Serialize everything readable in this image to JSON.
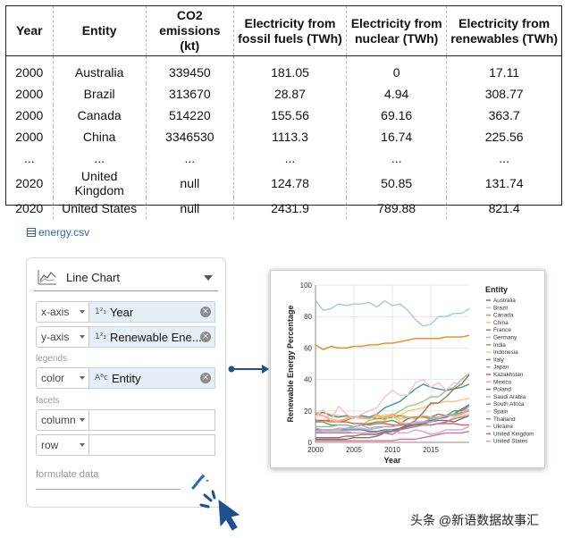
{
  "table": {
    "headers": [
      "Year",
      "Entity",
      "CO2 emissions (kt)",
      "Electricity from fossil fuels (TWh)",
      "Electricity from nuclear (TWh)",
      "Electricity from renewables (TWh)"
    ],
    "rows": [
      [
        "2000",
        "Australia",
        "339450",
        "181.05",
        "0",
        "17.11"
      ],
      [
        "2000",
        "Brazil",
        "313670",
        "28.87",
        "4.94",
        "308.77"
      ],
      [
        "2000",
        "Canada",
        "514220",
        "155.56",
        "69.16",
        "363.7"
      ],
      [
        "2000",
        "China",
        "3346530",
        "1113.3",
        "16.74",
        "225.56"
      ],
      [
        "...",
        "...",
        "...",
        "...",
        "...",
        "..."
      ],
      [
        "2020",
        "United Kingdom",
        "null",
        "124.78",
        "50.85",
        "131.74"
      ],
      [
        "2020",
        "United States",
        "null",
        "2431.9",
        "789.88",
        "821.4"
      ]
    ]
  },
  "file": {
    "name": "energy.csv"
  },
  "panel": {
    "chart_type": "Line Chart",
    "encodings": [
      {
        "channel": "x-axis",
        "field": "Year",
        "type_glyph": "1²₃"
      },
      {
        "channel": "y-axis",
        "field": "Renewable Ene...",
        "type_glyph": "1²₃"
      }
    ],
    "legends_label": "legends",
    "legend_encoding": {
      "channel": "color",
      "field": "Entity",
      "type_glyph": "Aᴮc"
    },
    "facets_label": "facets",
    "facet_encodings": [
      {
        "channel": "column",
        "field": ""
      },
      {
        "channel": "row",
        "field": ""
      }
    ],
    "formulate_placeholder": "formulate data"
  },
  "chart_data": {
    "type": "line",
    "xlabel": "Year",
    "ylabel": "Renewable Energy Percentage",
    "xlim": [
      2000,
      2020
    ],
    "ylim": [
      0,
      100
    ],
    "xticks": [
      2000,
      2005,
      2010,
      2015
    ],
    "yticks": [
      0,
      20,
      40,
      60,
      80,
      100
    ],
    "legend_title": "Entity",
    "legend_position": "right",
    "x": [
      2000,
      2001,
      2002,
      2003,
      2004,
      2005,
      2006,
      2007,
      2008,
      2009,
      2010,
      2011,
      2012,
      2013,
      2014,
      2015,
      2016,
      2017,
      2018,
      2019,
      2020
    ],
    "series": [
      {
        "name": "Australia",
        "color": "#4c78a8",
        "values": [
          8,
          8,
          8,
          8,
          8,
          8,
          8,
          7,
          7,
          8,
          8,
          9,
          10,
          12,
          13,
          14,
          15,
          16,
          18,
          21,
          24
        ]
      },
      {
        "name": "Brazil",
        "color": "#9ecae9",
        "values": [
          90,
          84,
          85,
          88,
          87,
          88,
          88,
          89,
          86,
          90,
          87,
          88,
          84,
          78,
          74,
          75,
          80,
          80,
          82,
          82,
          85
        ]
      },
      {
        "name": "Canada",
        "color": "#f58518",
        "values": [
          62,
          59,
          61,
          60,
          60,
          61,
          61,
          62,
          62,
          63,
          63,
          64,
          65,
          66,
          66,
          66,
          66,
          67,
          67,
          67,
          68
        ]
      },
      {
        "name": "China",
        "color": "#ffbf79",
        "values": [
          17,
          17,
          15,
          14,
          15,
          16,
          15,
          15,
          17,
          17,
          18,
          17,
          20,
          21,
          22,
          24,
          25,
          26,
          26,
          27,
          28
        ]
      },
      {
        "name": "France",
        "color": "#54a24b",
        "values": [
          13,
          13,
          11,
          11,
          11,
          10,
          11,
          12,
          13,
          13,
          14,
          12,
          15,
          16,
          16,
          16,
          18,
          17,
          20,
          20,
          23
        ]
      },
      {
        "name": "Germany",
        "color": "#88d27a",
        "values": [
          6,
          7,
          8,
          8,
          9,
          10,
          11,
          14,
          15,
          16,
          17,
          20,
          23,
          24,
          26,
          29,
          29,
          33,
          35,
          40,
          44
        ]
      },
      {
        "name": "India",
        "color": "#b79a20",
        "values": [
          14,
          14,
          13,
          13,
          14,
          16,
          16,
          16,
          15,
          15,
          16,
          17,
          16,
          16,
          16,
          15,
          16,
          17,
          18,
          19,
          20
        ]
      },
      {
        "name": "Indonesia",
        "color": "#f2cf5b",
        "values": [
          19,
          19,
          18,
          17,
          16,
          16,
          16,
          16,
          16,
          17,
          17,
          13,
          12,
          12,
          12,
          11,
          12,
          13,
          16,
          17,
          18
        ]
      },
      {
        "name": "Italy",
        "color": "#439894",
        "values": [
          18,
          19,
          17,
          16,
          17,
          16,
          17,
          16,
          18,
          22,
          24,
          26,
          30,
          34,
          37,
          35,
          34,
          33,
          34,
          35,
          37
        ]
      },
      {
        "name": "Japan",
        "color": "#83bcb6",
        "values": [
          10,
          10,
          10,
          11,
          11,
          10,
          11,
          9,
          10,
          10,
          10,
          11,
          11,
          12,
          13,
          15,
          16,
          17,
          18,
          18,
          21
        ]
      },
      {
        "name": "Kazakhstan",
        "color": "#e45756",
        "values": [
          14,
          14,
          14,
          13,
          13,
          12,
          12,
          11,
          12,
          12,
          11,
          11,
          11,
          11,
          11,
          11,
          12,
          12,
          12,
          11,
          11
        ]
      },
      {
        "name": "Mexico",
        "color": "#ff9d98",
        "values": [
          19,
          17,
          14,
          13,
          15,
          16,
          16,
          15,
          18,
          14,
          18,
          15,
          16,
          15,
          17,
          16,
          16,
          17,
          17,
          18,
          23
        ]
      },
      {
        "name": "Poland",
        "color": "#79706e",
        "values": [
          2,
          2,
          2,
          2,
          2,
          3,
          3,
          3,
          4,
          6,
          7,
          8,
          10,
          11,
          12,
          13,
          14,
          14,
          13,
          15,
          17
        ]
      },
      {
        "name": "Saudi Arabia",
        "color": "#bab0ac",
        "values": [
          0,
          0,
          0,
          0,
          0,
          0,
          0,
          0,
          0,
          0,
          0,
          0,
          0,
          0,
          0,
          0,
          0,
          0,
          0,
          0,
          0
        ]
      },
      {
        "name": "South Africa",
        "color": "#d67195",
        "values": [
          1,
          1,
          1,
          1,
          1,
          1,
          1,
          1,
          1,
          1,
          1,
          2,
          2,
          2,
          3,
          4,
          5,
          6,
          6,
          6,
          7
        ]
      },
      {
        "name": "Spain",
        "color": "#fcbfd2",
        "values": [
          16,
          21,
          14,
          23,
          18,
          15,
          18,
          20,
          22,
          29,
          33,
          30,
          30,
          38,
          40,
          35,
          38,
          33,
          38,
          37,
          44
        ]
      },
      {
        "name": "Thailand",
        "color": "#b279a2",
        "values": [
          6,
          6,
          6,
          6,
          6,
          6,
          6,
          6,
          6,
          6,
          5,
          8,
          9,
          10,
          11,
          11,
          12,
          13,
          15,
          16,
          17
        ]
      },
      {
        "name": "Ukraine",
        "color": "#d6a5c9",
        "values": [
          7,
          7,
          7,
          7,
          7,
          6,
          6,
          6,
          6,
          7,
          7,
          6,
          6,
          8,
          7,
          5,
          6,
          8,
          8,
          8,
          10
        ]
      },
      {
        "name": "United Kingdom",
        "color": "#9d755d",
        "values": [
          3,
          3,
          3,
          3,
          4,
          4,
          5,
          5,
          5,
          7,
          7,
          9,
          11,
          14,
          19,
          25,
          25,
          29,
          34,
          37,
          43
        ]
      },
      {
        "name": "United States",
        "color": "#c8a2c8",
        "values": [
          9,
          8,
          8,
          9,
          9,
          9,
          9,
          8,
          9,
          10,
          10,
          12,
          12,
          13,
          13,
          13,
          15,
          17,
          17,
          18,
          20
        ]
      }
    ]
  },
  "watermark": "头条 @新语数据故事汇"
}
